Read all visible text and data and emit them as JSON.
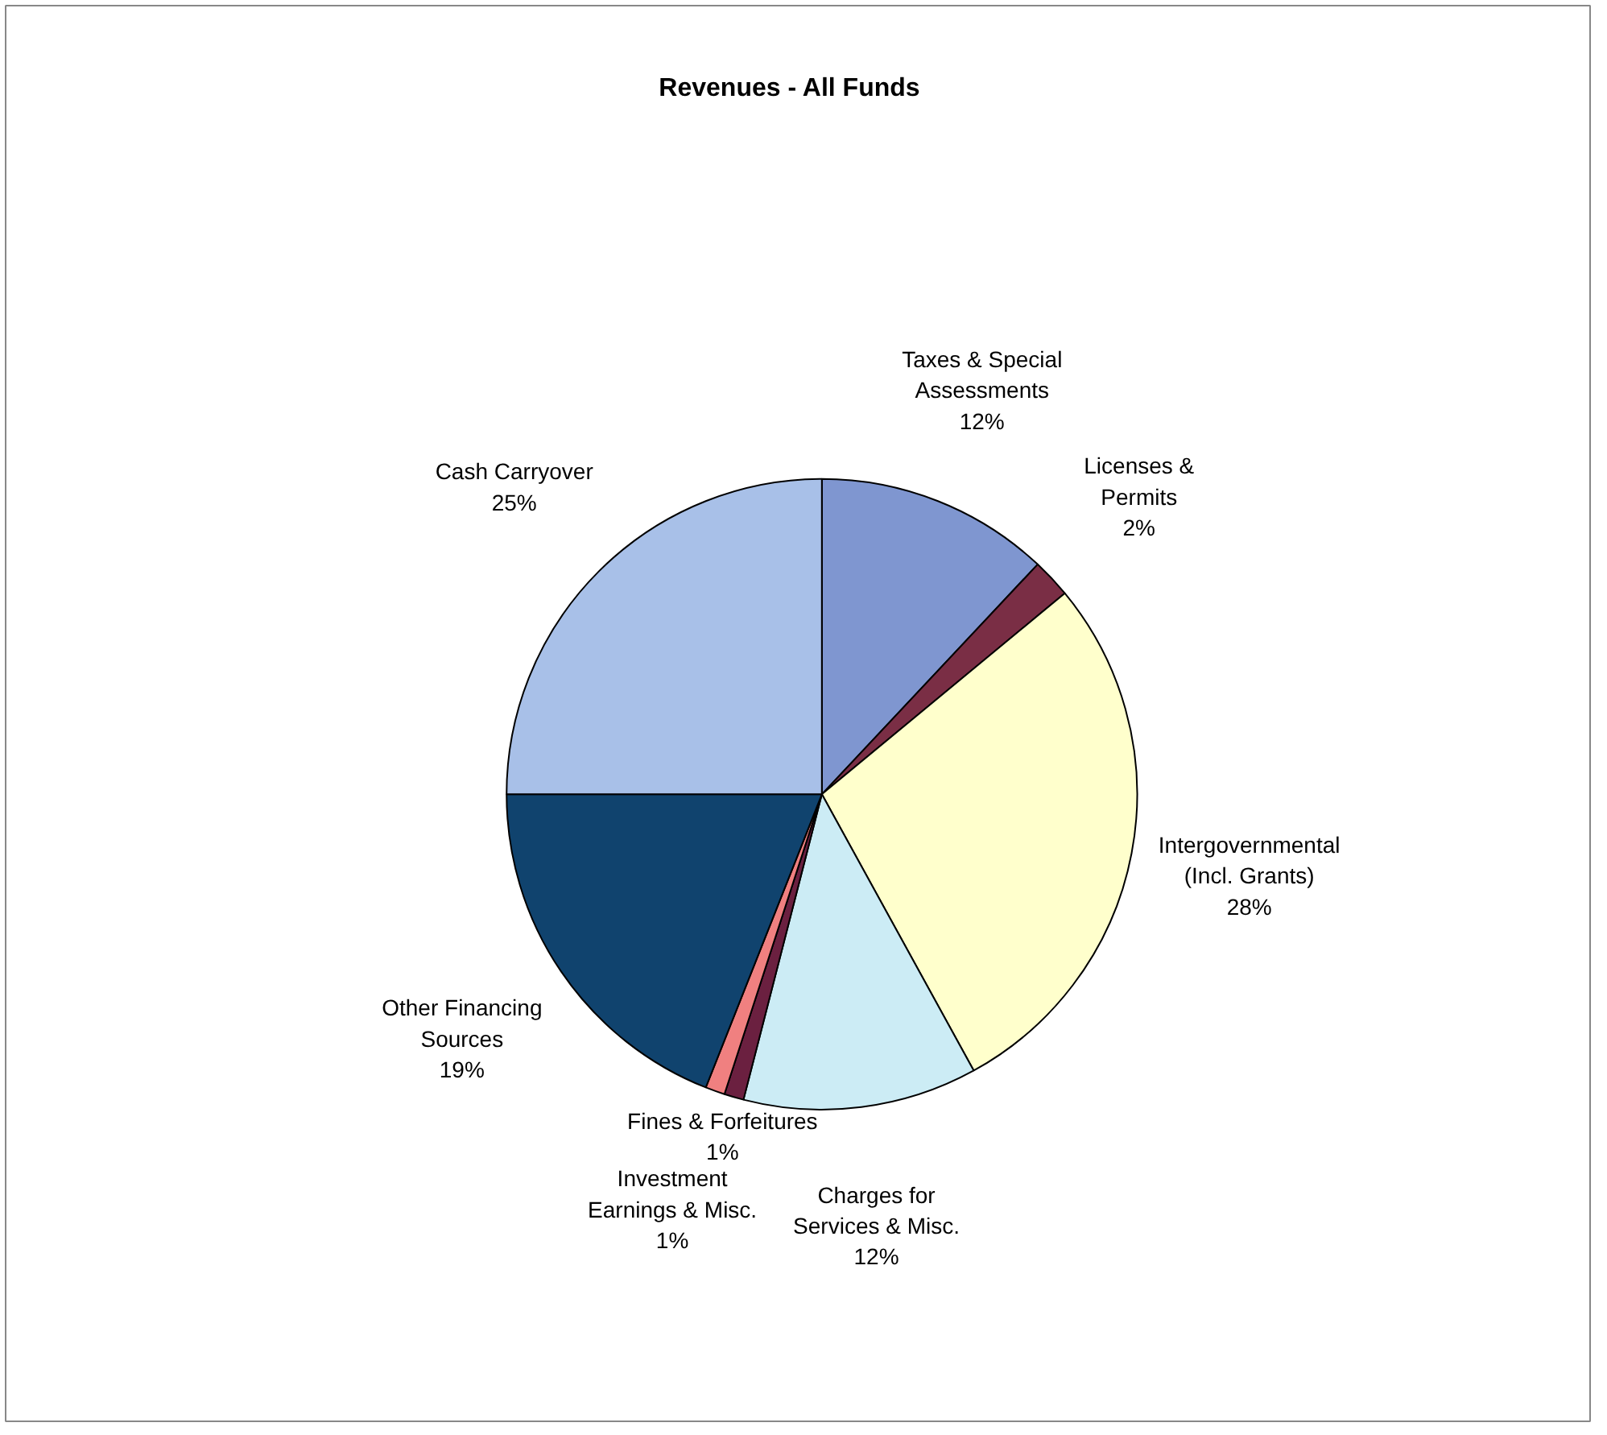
{
  "chart_data": {
    "type": "pie",
    "title": "Revenues - All Funds",
    "categories": [
      "Taxes & Special\nAssessments",
      "Licenses &\nPermits",
      "Intergovernmental\n(Incl. Grants)",
      "Charges for\nServices & Misc.",
      "Fines & Forfeitures",
      "Investment\nEarnings & Misc.",
      "Other Financing\nSources",
      "Cash Carryover"
    ],
    "values": [
      12,
      2,
      28,
      12,
      1,
      1,
      19,
      25
    ],
    "value_labels": [
      "12%",
      "2%",
      "28%",
      "12%",
      "1%",
      "1%",
      "19%",
      "25%"
    ],
    "colors": [
      "#7f96d0",
      "#7a2e45",
      "#ffffcc",
      "#ccecf5",
      "#6b2040",
      "#f08080",
      "#10436e",
      "#a8c0e8"
    ]
  }
}
